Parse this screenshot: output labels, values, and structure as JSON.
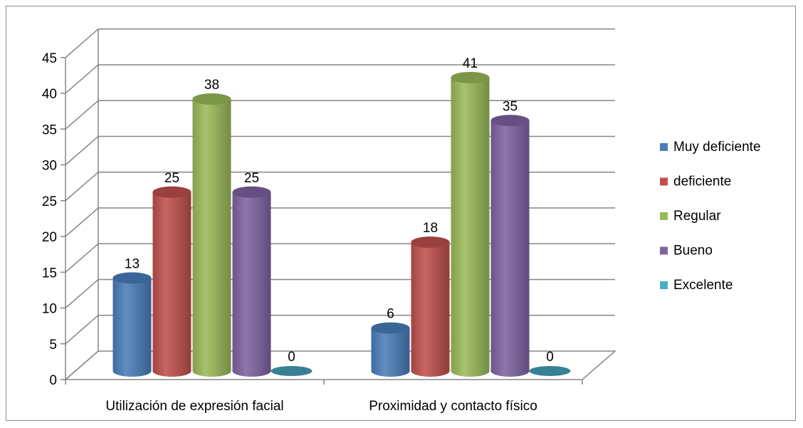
{
  "chart_data": {
    "type": "bar",
    "categories": [
      "Utilización de expresión facial",
      "Proximidad y contacto físico"
    ],
    "series": [
      {
        "name": "Muy deficiente",
        "values": [
          13,
          6
        ],
        "color": "#4a7ebb"
      },
      {
        "name": "deficiente",
        "values": [
          25,
          18
        ],
        "color": "#c0504d"
      },
      {
        "name": "Regular",
        "values": [
          38,
          41
        ],
        "color": "#9bbb59"
      },
      {
        "name": "Bueno",
        "values": [
          25,
          35
        ],
        "color": "#8064a2"
      },
      {
        "name": "Excelente",
        "values": [
          0,
          0
        ],
        "color": "#4bacc6"
      }
    ],
    "ylim": [
      0,
      45
    ],
    "yticks": [
      "0",
      "5",
      "10",
      "15",
      "20",
      "25",
      "30",
      "35",
      "40",
      "45"
    ],
    "grid": true,
    "legend_position": "right",
    "three_d": true
  }
}
